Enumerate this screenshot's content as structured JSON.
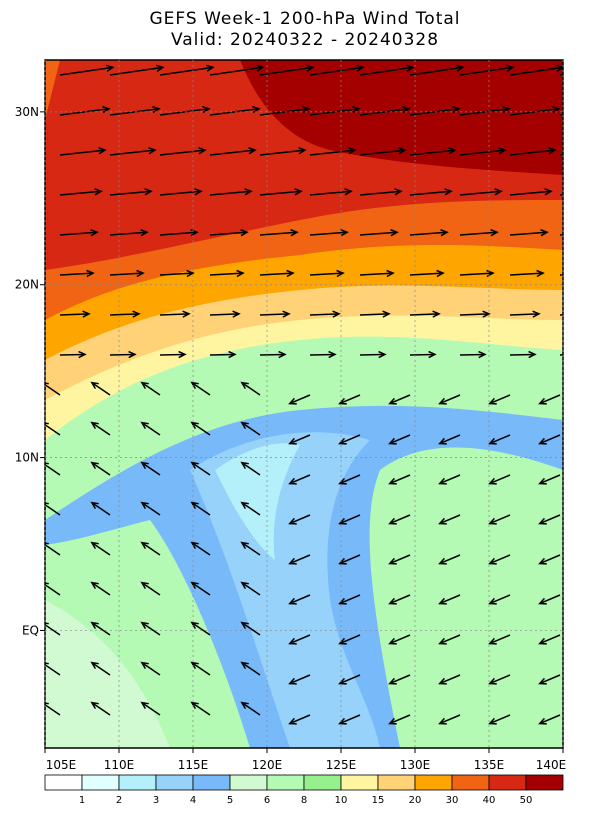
{
  "header": {
    "title": "GEFS Week-1 200-hPa Wind Total",
    "subtitle": "Valid: 20240322 - 20240328"
  },
  "map": {
    "lonlim": [
      105,
      140
    ],
    "latlim": [
      -6.8,
      33
    ],
    "lonticks": [
      {
        "value": 105,
        "label": "105E"
      },
      {
        "value": 110,
        "label": "110E"
      },
      {
        "value": 115,
        "label": "115E"
      },
      {
        "value": 120,
        "label": "120E"
      },
      {
        "value": 125,
        "label": "125E"
      },
      {
        "value": 130,
        "label": "130E"
      },
      {
        "value": 135,
        "label": "135E"
      },
      {
        "value": 140,
        "label": "140E"
      }
    ],
    "latticks": [
      {
        "value": 30,
        "label": "30N"
      },
      {
        "value": 20,
        "label": "20N"
      },
      {
        "value": 10,
        "label": "10N"
      },
      {
        "value": 0,
        "label": "EQ"
      }
    ],
    "grid": true
  },
  "colorbar": {
    "levels": [
      1,
      2,
      3,
      4,
      5,
      6,
      8,
      10,
      15,
      20,
      30,
      40,
      50
    ],
    "colors": [
      "#ffffff",
      "#e1ffff",
      "#b4f0fa",
      "#96d2fa",
      "#78b9fa",
      "#d2fad2",
      "#b4fab4",
      "#96f08c",
      "#fff5a0",
      "#ffd278",
      "#ffa500",
      "#f06414",
      "#d72814",
      "#a50000"
    ]
  }
}
